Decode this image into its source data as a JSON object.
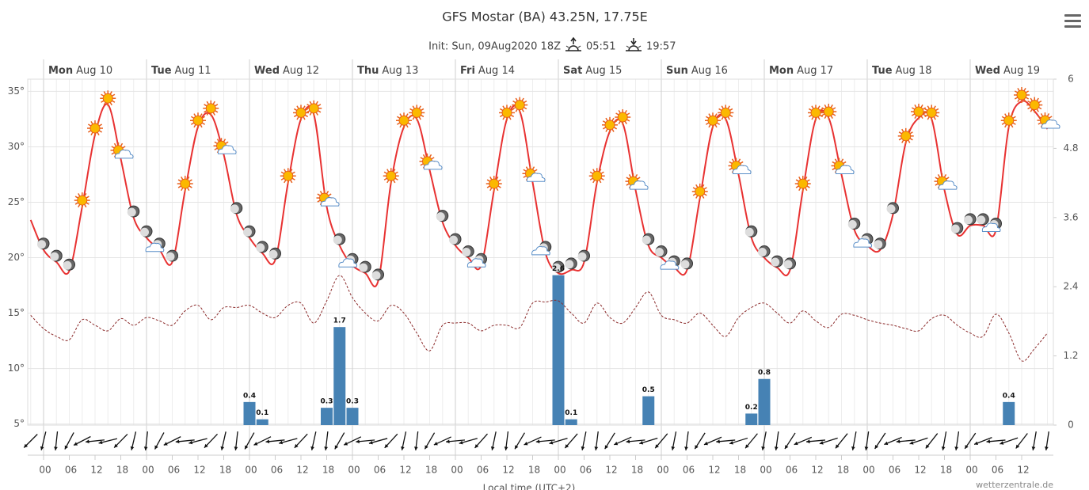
{
  "chart_data": {
    "type": "meteogram",
    "title": "GFS Mostar (BA) 43.25N, 17.75E",
    "subtitle": "Init: Sun, 09Aug2020 18Z",
    "sunrise": "05:51",
    "sunset": "19:57",
    "xlabel": "Local time (UTC+2)",
    "credit": "wetterzentrale.de",
    "day_labels": [
      [
        "Mon",
        "Aug 10"
      ],
      [
        "Tue",
        "Aug 11"
      ],
      [
        "Wed",
        "Aug 12"
      ],
      [
        "Thu",
        "Aug 13"
      ],
      [
        "Fri",
        "Aug 14"
      ],
      [
        "Sat",
        "Aug 15"
      ],
      [
        "Sun",
        "Aug 16"
      ],
      [
        "Mon",
        "Aug 17"
      ],
      [
        "Tue",
        "Aug 18"
      ],
      [
        "Wed",
        "Aug 19"
      ]
    ],
    "categories": [
      null,
      "00",
      null,
      "06",
      null,
      "12",
      null,
      "18",
      null,
      "00",
      null,
      "06",
      null,
      "12",
      null,
      "18",
      null,
      "00",
      null,
      "06",
      null,
      "12",
      null,
      "18",
      null,
      "00",
      null,
      "06",
      null,
      "12",
      null,
      "18",
      null,
      "00",
      null,
      "06",
      null,
      "12",
      null,
      "18",
      null,
      "00",
      null,
      "06",
      null,
      "12",
      null,
      "18",
      null,
      "00",
      null,
      "06",
      null,
      "12",
      null,
      "18",
      null,
      "00",
      null,
      "06",
      null,
      "12",
      null,
      "18",
      null,
      "00",
      null,
      "06",
      null,
      "12",
      null,
      "18",
      null,
      "00",
      null,
      "06",
      null,
      "12",
      null,
      null
    ],
    "series": [
      {
        "name": "Temperature",
        "color": "#e83232",
        "axis": "y",
        "values": [
          23.4,
          20.7,
          19.6,
          18.8,
          24.6,
          31.1,
          33.8,
          28.9,
          23.6,
          21.8,
          20.7,
          19.6,
          26.1,
          31.8,
          32.9,
          29.3,
          23.9,
          21.8,
          20.4,
          19.8,
          26.8,
          32.5,
          32.9,
          24.6,
          21.1,
          19.3,
          18.6,
          17.9,
          26.8,
          31.8,
          32.5,
          27.9,
          23.2,
          21.1,
          20.0,
          19.3,
          26.1,
          32.5,
          33.2,
          26.8,
          20.4,
          18.6,
          18.9,
          19.6,
          26.8,
          31.4,
          32.1,
          26.1,
          21.1,
          20.0,
          19.1,
          18.9,
          25.4,
          31.8,
          32.5,
          27.5,
          21.8,
          20.0,
          19.1,
          18.9,
          26.1,
          32.5,
          32.6,
          27.5,
          22.5,
          21.1,
          20.7,
          23.9,
          30.4,
          32.6,
          32.5,
          26.1,
          22.1,
          22.9,
          22.9,
          22.5,
          31.8,
          34.1,
          33.2,
          31.6
        ]
      },
      {
        "name": "Dew point",
        "color": "#8b2a2a",
        "axis": "y",
        "values": [
          14.8,
          13.6,
          12.9,
          12.6,
          14.4,
          13.9,
          13.4,
          14.5,
          13.9,
          14.6,
          14.3,
          13.9,
          15.2,
          15.7,
          14.4,
          15.5,
          15.5,
          15.7,
          15.0,
          14.6,
          15.7,
          15.9,
          14.1,
          16.1,
          18.4,
          16.4,
          15.0,
          14.3,
          15.7,
          15.0,
          13.2,
          11.6,
          13.9,
          14.1,
          14.1,
          13.4,
          13.9,
          13.9,
          13.7,
          15.9,
          16.0,
          16.1,
          15.0,
          14.1,
          15.9,
          14.6,
          14.1,
          15.5,
          16.9,
          14.8,
          14.4,
          14.1,
          15.0,
          13.9,
          12.9,
          14.6,
          15.5,
          15.9,
          15.0,
          14.1,
          15.2,
          14.3,
          13.7,
          14.9,
          14.8,
          14.4,
          14.1,
          13.9,
          13.6,
          13.4,
          14.5,
          14.8,
          13.9,
          13.2,
          12.9,
          14.9,
          13.2,
          10.7,
          11.8,
          13.2
        ]
      },
      {
        "name": "Precipitation",
        "color": "#4682b4",
        "axis": "y2",
        "values": [
          null,
          null,
          null,
          null,
          null,
          null,
          null,
          null,
          null,
          null,
          null,
          null,
          null,
          null,
          null,
          null,
          null,
          0.4,
          0.1,
          null,
          null,
          null,
          null,
          0.3,
          1.7,
          0.3,
          null,
          null,
          null,
          null,
          null,
          null,
          null,
          null,
          null,
          null,
          null,
          null,
          null,
          null,
          null,
          2.6,
          0.1,
          null,
          null,
          null,
          null,
          null,
          0.5,
          null,
          null,
          null,
          null,
          null,
          null,
          null,
          0.2,
          0.8,
          null,
          null,
          null,
          null,
          null,
          null,
          null,
          null,
          null,
          null,
          null,
          null,
          null,
          null,
          null,
          null,
          null,
          null,
          0.4,
          null,
          null,
          null
        ]
      }
    ],
    "ylim": [
      4.9,
      36.1
    ],
    "yticks": [
      {
        "value": 5,
        "label": "5°"
      },
      {
        "value": 10,
        "label": "10°"
      },
      {
        "value": 15,
        "label": "15°"
      },
      {
        "value": 20,
        "label": "20°"
      },
      {
        "value": 25,
        "label": "25°"
      },
      {
        "value": 30,
        "label": "30°"
      },
      {
        "value": 35,
        "label": "35°"
      }
    ],
    "y2lim": [
      0,
      6
    ],
    "y2ticks": [
      0,
      1.2,
      2.4,
      3.6,
      4.8,
      6
    ],
    "grid": true
  }
}
